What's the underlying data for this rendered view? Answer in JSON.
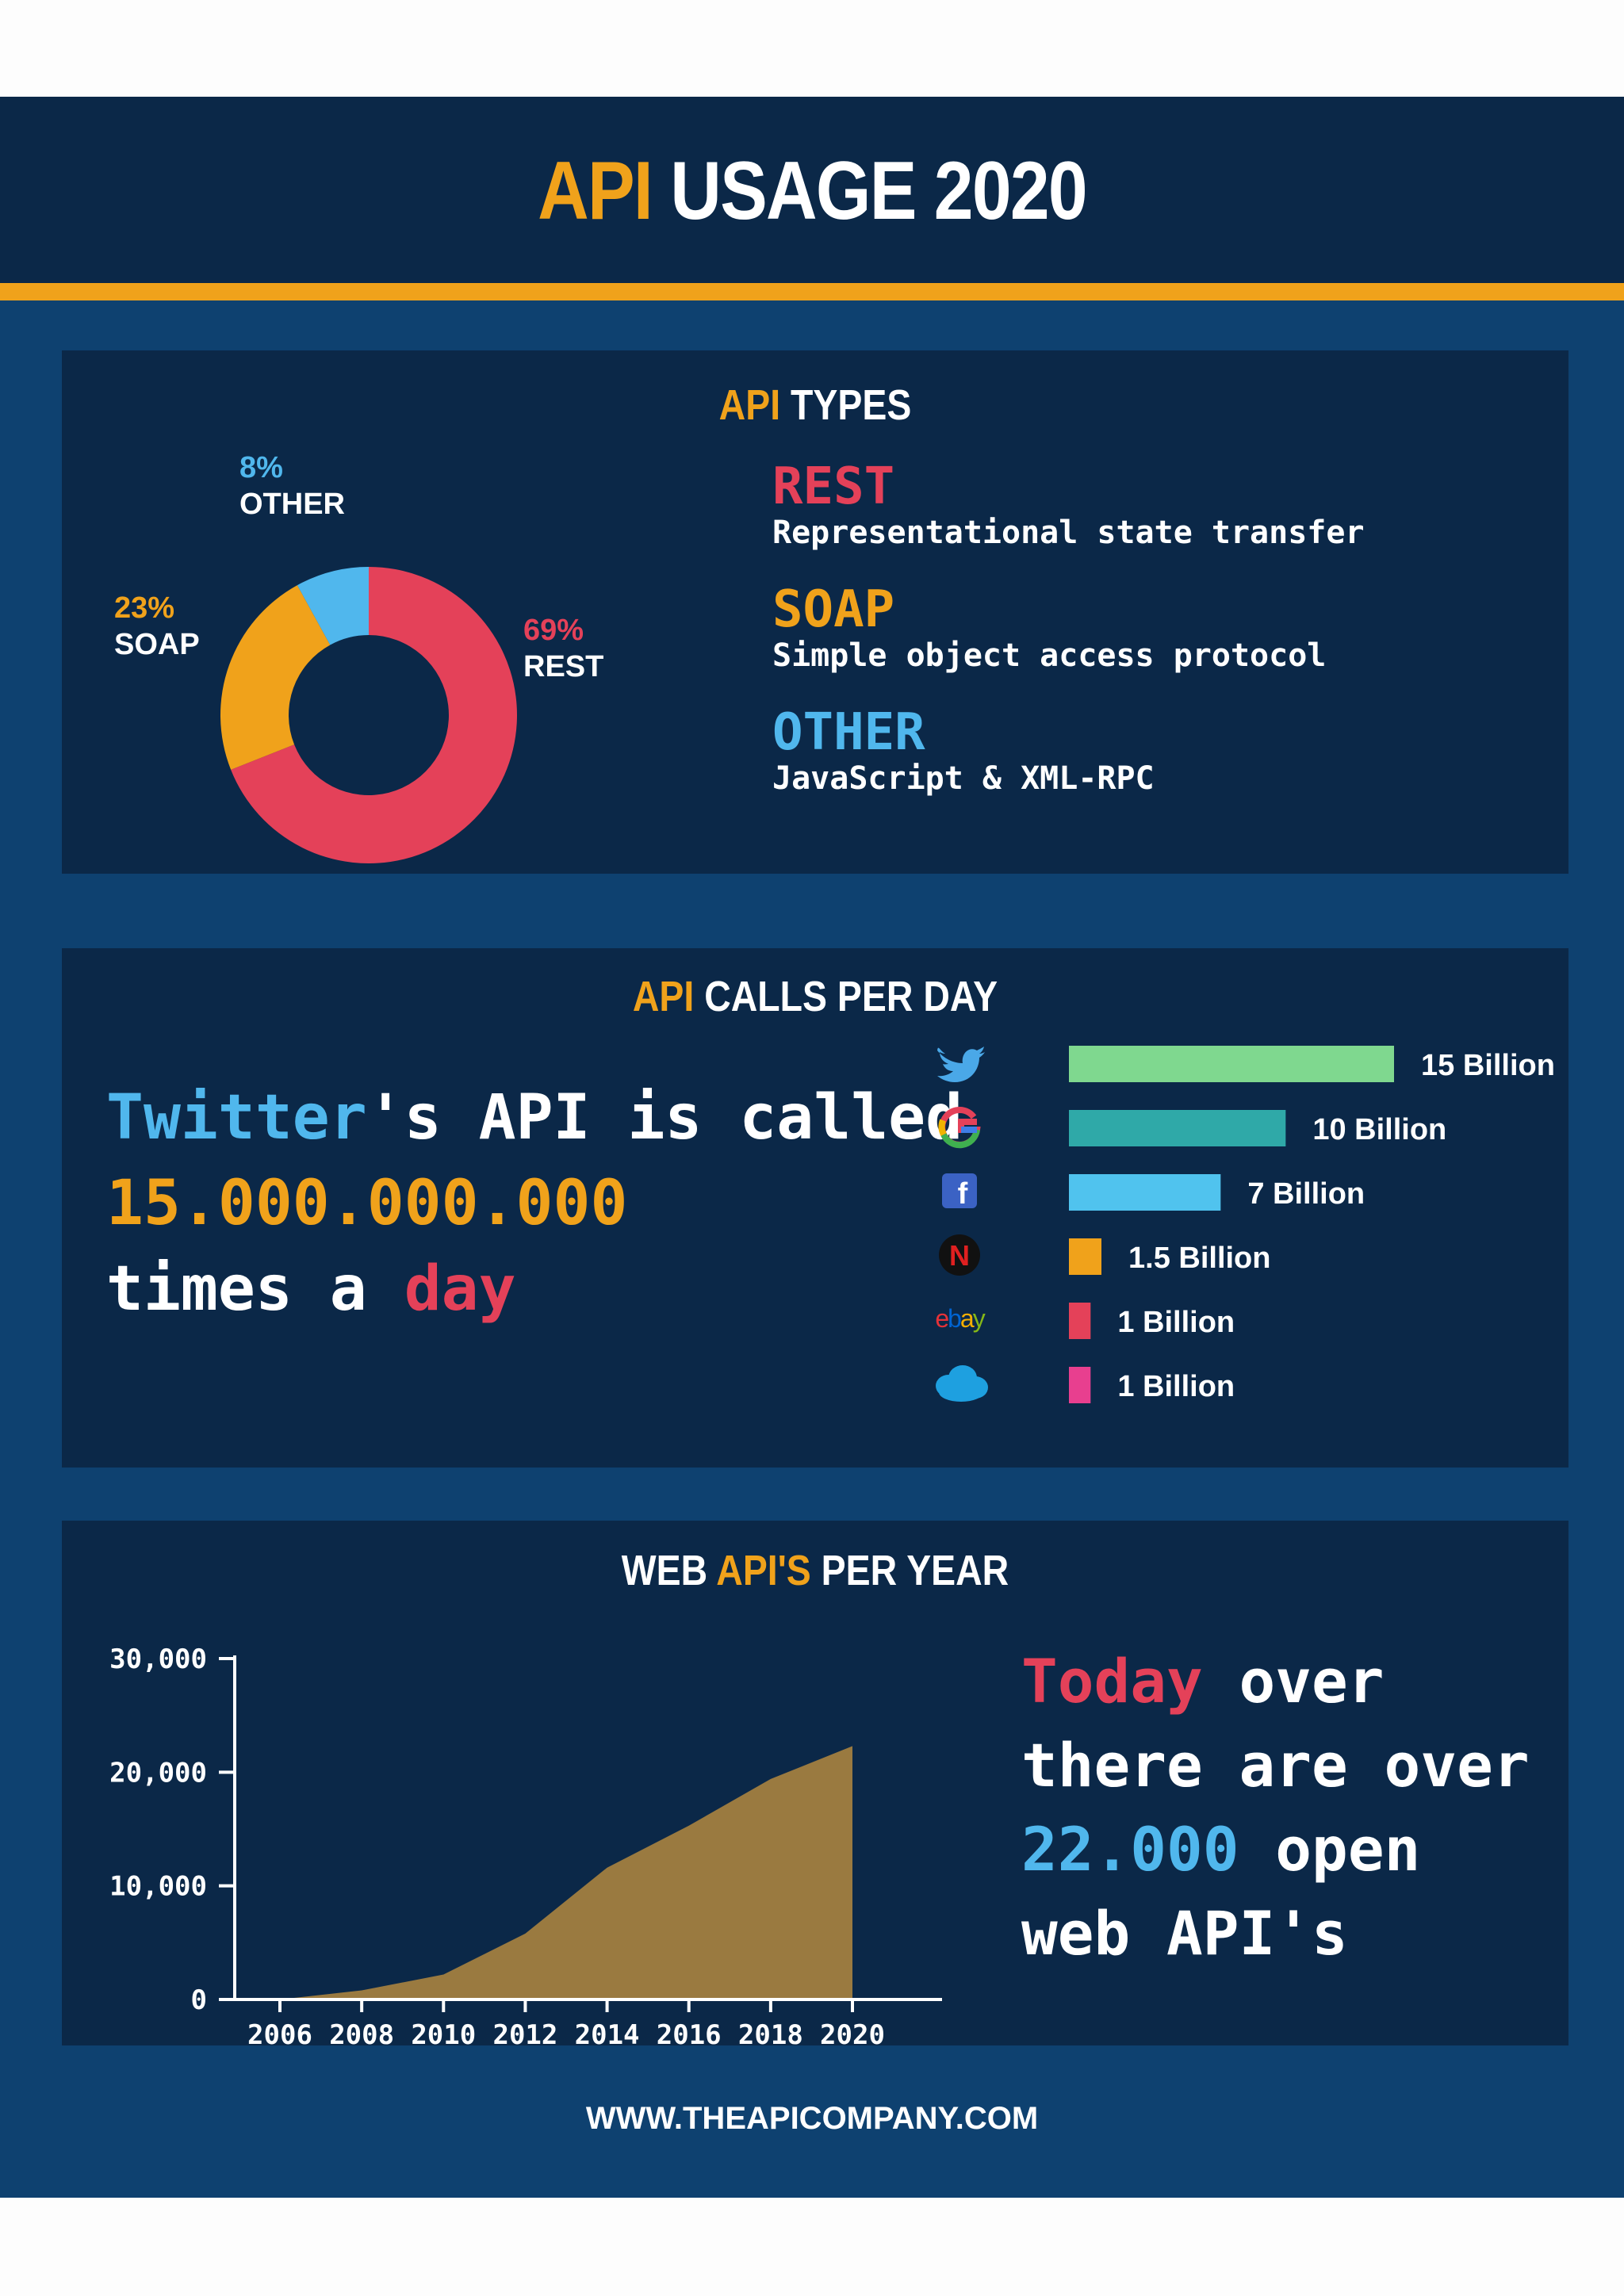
{
  "header": {
    "title_accent": "API",
    "title_rest": "USAGE 2020"
  },
  "colors": {
    "navy": "#0b2848",
    "blue_bg": "#0e4170",
    "orange": "#f0a21b",
    "red": "#e44159",
    "light_blue": "#50b7ed"
  },
  "types": {
    "title_accent": "API",
    "title_rest": "TYPES",
    "items": [
      {
        "name": "REST",
        "desc": "Representational state transfer",
        "color": "#e44159"
      },
      {
        "name": "SOAP",
        "desc": "Simple object access protocol",
        "color": "#f0a21b"
      },
      {
        "name": "OTHER",
        "desc": "JavaScript & XML-RPC",
        "color": "#50b7ed"
      }
    ]
  },
  "calls": {
    "title_accent": "API",
    "title_rest": "CALLS PER DAY",
    "text": {
      "l1a": "Twitter",
      "l1b": "'s API is called",
      "l2": "15.000.000.000",
      "l3a": "times a ",
      "l3b": "day"
    }
  },
  "webapis": {
    "title_a": "WEB",
    "title_accent": "API'S",
    "title_rest": "PER YEAR",
    "text": {
      "l1a": "Today",
      "l1b": " over",
      "l2": "there are over",
      "l3a": "22.000",
      "l3b": " open",
      "l4": "web API's"
    }
  },
  "footer": {
    "url": "WWW.THEAPICOMPANY.COM"
  },
  "chart_data": [
    {
      "type": "pie",
      "variant": "donut",
      "categories": [
        "REST",
        "SOAP",
        "OTHER"
      ],
      "values": [
        69,
        23,
        8
      ],
      "labels": [
        "69%",
        "23%",
        "8%"
      ],
      "colors": [
        "#e44159",
        "#f0a21b",
        "#50b7ed"
      ]
    },
    {
      "type": "bar",
      "orientation": "horizontal",
      "categories": [
        "twitter-icon",
        "google-icon",
        "facebook-icon",
        "netflix-icon",
        "ebay-icon",
        "salesforce-icon"
      ],
      "values": [
        15,
        10,
        7,
        1.5,
        1,
        1
      ],
      "labels": [
        "15 Billion",
        "10 Billion",
        "7 Billion",
        "1.5 Billion",
        "1 Billion",
        "1 Billion"
      ],
      "colors": [
        "#7fd88f",
        "#2fa9a8",
        "#50c3ee",
        "#f0a21b",
        "#e44159",
        "#e83f8f"
      ]
    },
    {
      "type": "area",
      "x": [
        2006,
        2008,
        2010,
        2012,
        2014,
        2016,
        2018,
        2020
      ],
      "values": [
        0,
        800,
        2200,
        5800,
        11600,
        15300,
        19400,
        22300
      ],
      "xticks": [
        "2006",
        "2008",
        "2010",
        "2012",
        "2014",
        "2016",
        "2018",
        "2020"
      ],
      "yticks": [
        "0",
        "10,000",
        "20,000",
        "30,000"
      ],
      "ylim": [
        0,
        30000
      ],
      "fill": "#9a7a40"
    }
  ]
}
